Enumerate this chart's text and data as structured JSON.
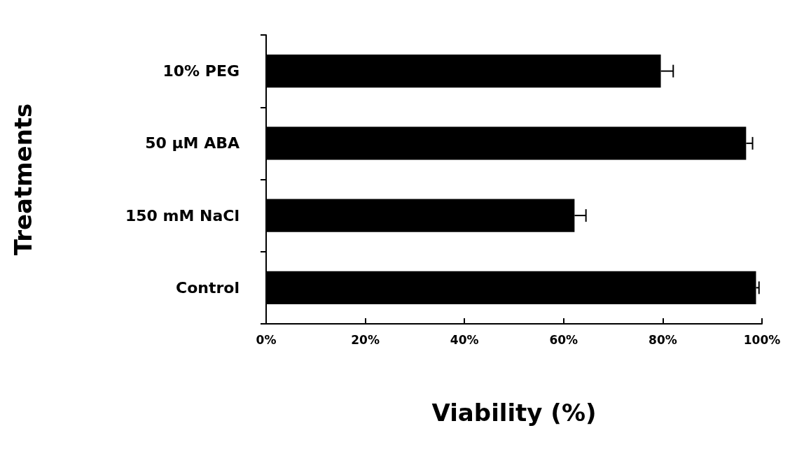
{
  "chart_data": {
    "type": "bar",
    "orientation": "horizontal",
    "xlabel": "Viability (%)",
    "ylabel": "Treatments",
    "categories": [
      "10% PEG",
      "50 µM ABA",
      "150 mM NaCl",
      "Control"
    ],
    "values": [
      79.6,
      96.8,
      62.2,
      98.8
    ],
    "errors": [
      2.5,
      1.3,
      2.3,
      0.6
    ],
    "color": "#000000",
    "xlim": [
      0,
      100
    ],
    "xticks": [
      {
        "value": 0,
        "label": "0%"
      },
      {
        "value": 20,
        "label": "20%"
      },
      {
        "value": 40,
        "label": "40%"
      },
      {
        "value": 60,
        "label": "60%"
      },
      {
        "value": 80,
        "label": "80%"
      },
      {
        "value": 100,
        "label": "100%"
      }
    ],
    "grid": false
  }
}
